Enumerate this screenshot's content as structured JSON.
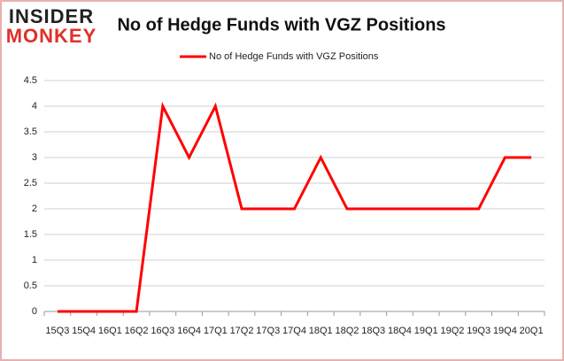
{
  "logo": {
    "line1": "INSIDER",
    "line2": "MONKEY"
  },
  "chart_data": {
    "type": "line",
    "title": "No of Hedge Funds with VGZ Positions",
    "categories": [
      "15Q3",
      "15Q4",
      "16Q1",
      "16Q2",
      "16Q3",
      "16Q4",
      "17Q1",
      "17Q2",
      "17Q3",
      "17Q4",
      "18Q1",
      "18Q2",
      "18Q3",
      "18Q4",
      "19Q1",
      "19Q2",
      "19Q3",
      "19Q4",
      "20Q1"
    ],
    "series": [
      {
        "name": "No of Hedge Funds with VGZ Positions",
        "color": "#ff0000",
        "values": [
          0,
          0,
          0,
          0,
          4,
          3,
          4,
          2,
          2,
          2,
          3,
          2,
          2,
          2,
          2,
          2,
          2,
          3,
          3
        ]
      }
    ],
    "ylim": [
      0,
      4.5
    ],
    "yticks": [
      0,
      0.5,
      1,
      1.5,
      2,
      2.5,
      3,
      3.5,
      4,
      4.5
    ],
    "grid": true,
    "legend": "top"
  }
}
